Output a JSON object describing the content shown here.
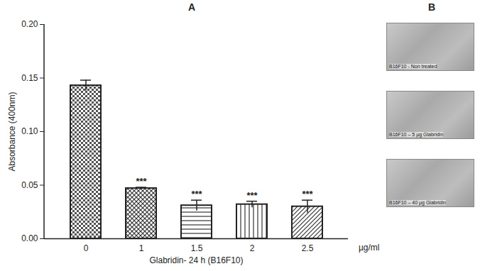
{
  "chart_data": {
    "type": "bar",
    "title": "A",
    "categories": [
      "0",
      "1",
      "1.5",
      "2",
      "2.5"
    ],
    "values": [
      0.143,
      0.047,
      0.031,
      0.032,
      0.03
    ],
    "errors": [
      0.005,
      0.001,
      0.005,
      0.003,
      0.006
    ],
    "significance": [
      null,
      "***",
      "***",
      "***",
      "***"
    ],
    "x_label": "Glabridin- 24 h (B16F10)",
    "x_unit": "µg/ml",
    "y_label": "Absorbance (400nm)",
    "ylim": [
      0,
      0.2
    ],
    "yticks": [
      {
        "value": 0,
        "label": "0.00"
      },
      {
        "value": 0.05,
        "label": "0.05"
      },
      {
        "value": 0.1,
        "label": "0.10"
      },
      {
        "value": 0.15,
        "label": "0.15"
      },
      {
        "value": 0.2,
        "label": "0.20"
      }
    ],
    "color": "#222222",
    "grid": false
  },
  "panel_b": {
    "title": "B",
    "captions": [
      "B16F10 - Non treated",
      "B16F10 – 5 µg Glabridin",
      "B16F10 – 40 µg Glabridin"
    ]
  }
}
